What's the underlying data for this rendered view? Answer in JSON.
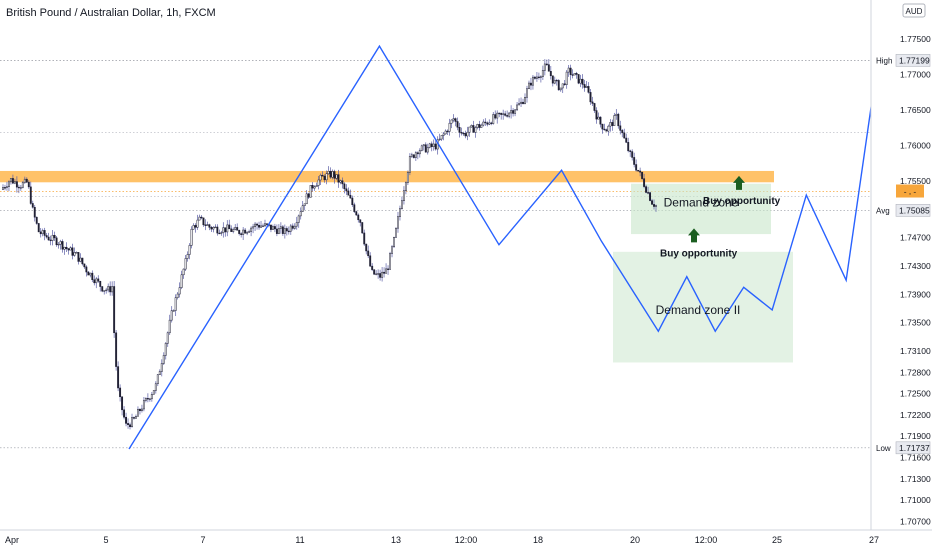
{
  "header": {
    "title": "British Pound / Australian Dollar, 1h, FXCM"
  },
  "axis": {
    "currency_badge": "AUD"
  },
  "chart_data": {
    "type": "candlestick",
    "symbol": "British Pound / Australian Dollar",
    "interval": "1h",
    "source": "FXCM",
    "currency": "AUD",
    "y_ticks": [
      "1.77500",
      "1.77000",
      "1.76500",
      "1.76000",
      "1.75500",
      "1.74700",
      "1.74300",
      "1.73900",
      "1.73500",
      "1.73100",
      "1.72800",
      "1.72500",
      "1.72200",
      "1.71900",
      "1.71600",
      "1.71300",
      "1.71000",
      "1.70700"
    ],
    "x_ticks": [
      "Apr",
      "5",
      "7",
      "11",
      "13",
      "12:00",
      "18",
      "20",
      "12:00",
      "25",
      "27"
    ],
    "ylim": [
      1.7055,
      1.7805
    ],
    "markers": [
      {
        "tag": "High",
        "value": "1.77199"
      },
      {
        "tag": "Avg",
        "value": "1.75085"
      },
      {
        "tag": "Low",
        "value": "1.71737"
      }
    ],
    "current_price_badge": "-.-",
    "resistance_band": [
      1.7548,
      1.7564
    ],
    "zones": [
      {
        "label": "Demand zone",
        "top": 1.7546,
        "bottom": 1.7475
      },
      {
        "label": "Demand zone II",
        "top": 1.745,
        "bottom": 1.7294
      }
    ],
    "annotations": [
      {
        "text": "Buy opportunity",
        "arrow_price": 1.7557
      },
      {
        "text": "Buy opportunity",
        "arrow_price": 1.7483
      }
    ],
    "price_path": [
      [
        0,
        1.7538
      ],
      [
        5,
        1.7552
      ],
      [
        10,
        1.7544
      ],
      [
        14,
        1.7548
      ],
      [
        17,
        1.7505
      ],
      [
        20,
        1.7478
      ],
      [
        25,
        1.747
      ],
      [
        30,
        1.7465
      ],
      [
        35,
        1.7454
      ],
      [
        40,
        1.7445
      ],
      [
        45,
        1.7425
      ],
      [
        50,
        1.741
      ],
      [
        54,
        1.7398
      ],
      [
        57,
        1.7396
      ],
      [
        59,
        1.7402
      ],
      [
        60,
        1.7316
      ],
      [
        62,
        1.725
      ],
      [
        66,
        1.7205
      ],
      [
        70,
        1.7212
      ],
      [
        74,
        1.723
      ],
      [
        78,
        1.7245
      ],
      [
        82,
        1.7262
      ],
      [
        86,
        1.731
      ],
      [
        90,
        1.736
      ],
      [
        94,
        1.74
      ],
      [
        98,
        1.744
      ],
      [
        101,
        1.7484
      ],
      [
        105,
        1.7495
      ],
      [
        110,
        1.7485
      ],
      [
        115,
        1.7482
      ],
      [
        120,
        1.7482
      ],
      [
        125,
        1.7478
      ],
      [
        130,
        1.7482
      ],
      [
        135,
        1.7488
      ],
      [
        140,
        1.7486
      ],
      [
        145,
        1.7482
      ],
      [
        150,
        1.7478
      ],
      [
        155,
        1.749
      ],
      [
        160,
        1.752
      ],
      [
        165,
        1.7545
      ],
      [
        170,
        1.7555
      ],
      [
        175,
        1.756
      ],
      [
        180,
        1.7545
      ],
      [
        185,
        1.752
      ],
      [
        190,
        1.7492
      ],
      [
        193,
        1.745
      ],
      [
        196,
        1.742
      ],
      [
        200,
        1.7415
      ],
      [
        204,
        1.7425
      ],
      [
        208,
        1.747
      ],
      [
        212,
        1.753
      ],
      [
        216,
        1.758
      ],
      [
        220,
        1.7594
      ],
      [
        225,
        1.7596
      ],
      [
        230,
        1.76
      ],
      [
        235,
        1.762
      ],
      [
        239,
        1.7638
      ],
      [
        244,
        1.7615
      ],
      [
        250,
        1.7625
      ],
      [
        255,
        1.763
      ],
      [
        260,
        1.7638
      ],
      [
        265,
        1.7642
      ],
      [
        270,
        1.765
      ],
      [
        275,
        1.766
      ],
      [
        280,
        1.769
      ],
      [
        285,
        1.7702
      ],
      [
        288,
        1.7712
      ],
      [
        292,
        1.769
      ],
      [
        296,
        1.768
      ],
      [
        300,
        1.7705
      ],
      [
        304,
        1.7695
      ],
      [
        308,
        1.7686
      ],
      [
        312,
        1.7662
      ],
      [
        316,
        1.7632
      ],
      [
        320,
        1.7622
      ],
      [
        325,
        1.764
      ],
      [
        329,
        1.761
      ],
      [
        333,
        1.7582
      ],
      [
        337,
        1.7562
      ],
      [
        341,
        1.7538
      ],
      [
        344,
        1.752
      ],
      [
        346,
        1.7515
      ]
    ],
    "projection_path": [
      [
        0,
        1.7172
      ],
      [
        44,
        1.774
      ],
      [
        65,
        1.746
      ],
      [
        76,
        1.7565
      ],
      [
        83,
        1.7465
      ],
      [
        93,
        1.7338
      ],
      [
        98,
        1.7415
      ],
      [
        103,
        1.7338
      ],
      [
        108,
        1.74
      ],
      [
        113,
        1.7368
      ],
      [
        119,
        1.753
      ],
      [
        126,
        1.741
      ],
      [
        133,
        1.78
      ]
    ]
  }
}
